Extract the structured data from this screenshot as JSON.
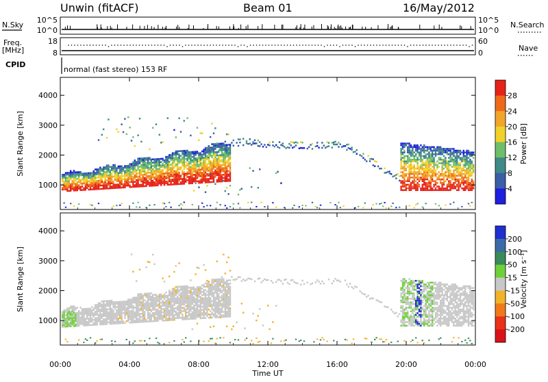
{
  "header": {
    "station": "Unwin (fitACF)",
    "beam": "Beam 01",
    "date": "16/May/2012"
  },
  "strip": {
    "nsky_label": "N.Sky",
    "nsky_ticks": [
      "10^5",
      "10^0"
    ],
    "nsearch_label": "N.Search",
    "nsearch_ticks": [
      "10^5",
      "10^0"
    ],
    "freq_label_1": "Freq.",
    "freq_label_2": "[MHz]",
    "freq_ticks": [
      "18",
      "8"
    ],
    "nave_label": "Nave",
    "nave_ticks": [
      "60",
      "0"
    ],
    "cpid_label": "CPID",
    "cpid_value": "normal (fast stereo) 153 RF"
  },
  "chart_data": [
    {
      "type": "heatmap",
      "panel": "power",
      "ylabel": "Slant Range [km]",
      "yticks": [
        1000,
        2000,
        3000,
        4000
      ],
      "ylim": [
        180,
        4600
      ],
      "xlim": [
        "00:00",
        "24:00"
      ],
      "colorbar": {
        "label": "Power [dB]",
        "ticks": [
          "4",
          "8",
          "12",
          "16",
          "20",
          "24",
          "28"
        ],
        "colors": [
          "#1f1fe0",
          "#3a5fa8",
          "#3f8a86",
          "#6fbe6a",
          "#f2d12a",
          "#f1a52a",
          "#ee6a1a",
          "#e6231a"
        ]
      },
      "features": [
        {
          "start": "00:00",
          "end": "09:30",
          "range_from": 800,
          "range_to": 1900,
          "level": "high"
        },
        {
          "start": "09:30",
          "end": "14:00",
          "range_from": 2000,
          "range_to": 2500,
          "level": "low"
        },
        {
          "start": "14:00",
          "end": "18:30",
          "range_from": 2000,
          "range_to": 2400,
          "level": "low"
        },
        {
          "start": "20:00",
          "end": "24:00",
          "range_from": 800,
          "range_to": 2200,
          "level": "high"
        }
      ]
    },
    {
      "type": "heatmap",
      "panel": "velocity",
      "ylabel": "Slant Range [km]",
      "yticks": [
        1000,
        2000,
        3000,
        4000
      ],
      "ylim": [
        180,
        4600
      ],
      "xlim": [
        "00:00",
        "24:00"
      ],
      "colorbar": {
        "label": "Velocity [m s⁻¹]",
        "ticks": [
          "200",
          "100",
          "50",
          "15",
          "-15",
          "-50",
          "-100",
          "-200"
        ],
        "colors": [
          "#1f2fd0",
          "#3b6aa8",
          "#3a8a5a",
          "#6fd13a",
          "#c8c8c8",
          "#f1b32a",
          "#f07a1a",
          "#e8321a",
          "#d8141a"
        ]
      }
    }
  ],
  "xaxis": {
    "label": "Time UT",
    "ticks": [
      "00:00",
      "04:00",
      "08:00",
      "12:00",
      "16:00",
      "20:00",
      "00:00"
    ]
  }
}
